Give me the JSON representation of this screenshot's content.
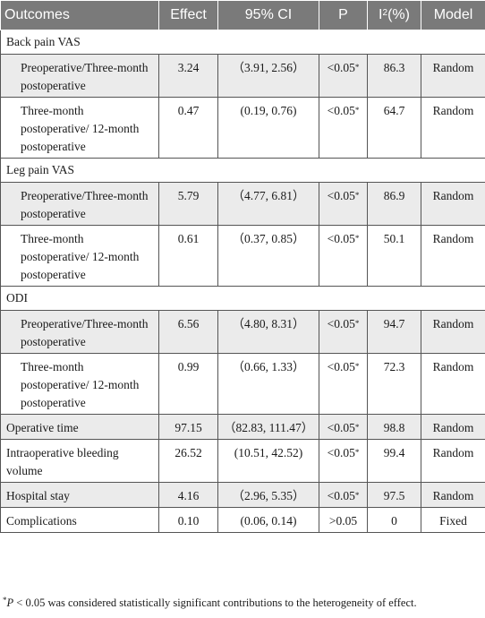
{
  "table": {
    "headers": {
      "outcomes": "Outcomes",
      "effect": "Effect",
      "ci": "95% CI",
      "p": "P",
      "i2_base": "I",
      "i2_sup": "2",
      "i2_unit": "(%)",
      "model": "Model"
    },
    "sections": {
      "back": "Back pain VAS",
      "leg": "Leg pain VAS",
      "odi": "ODI"
    },
    "rows": [
      {
        "outcome": "Preoperative/Three-month postoperative",
        "effect": "3.24",
        "ci": "（3.91, 2.56）",
        "p": "<0.05",
        "p_mark": "*",
        "i2": "86.3",
        "model": "Random"
      },
      {
        "outcome": "Three-month postoperative/ 12-month postoperative",
        "effect": "0.47",
        "ci": "(0.19, 0.76)",
        "p": "<0.05",
        "p_mark": "*",
        "i2": "64.7",
        "model": "Random"
      },
      {
        "outcome": "Preoperative/Three-month postoperative",
        "effect": "5.79",
        "ci": "（4.77, 6.81）",
        "p": "<0.05",
        "p_mark": "*",
        "i2": "86.9",
        "model": "Random"
      },
      {
        "outcome": "Three-month postoperative/ 12-month postoperative",
        "effect": "0.61",
        "ci": "（0.37, 0.85）",
        "p": "<0.05",
        "p_mark": "*",
        "i2": "50.1",
        "model": "Random"
      },
      {
        "outcome": "Preoperative/Three-month postoperative",
        "effect": "6.56",
        "ci": "（4.80, 8.31）",
        "p": "<0.05",
        "p_mark": "*",
        "i2": "94.7",
        "model": "Random"
      },
      {
        "outcome": "Three-month postoperative/ 12-month postoperative",
        "effect": "0.99",
        "ci": "（0.66, 1.33）",
        "p": "<0.05",
        "p_mark": "*",
        "i2": "72.3",
        "model": "Random"
      },
      {
        "outcome": "Operative time",
        "effect": "97.15",
        "ci": "（82.83, 111.47）",
        "p": "<0.05",
        "p_mark": "*",
        "i2": "98.8",
        "model": "Random"
      },
      {
        "outcome": "Intraoperative bleeding volume",
        "effect": "26.52",
        "ci": "(10.51, 42.52)",
        "p": "<0.05",
        "p_mark": "*",
        "i2": "99.4",
        "model": "Random"
      },
      {
        "outcome": "Hospital stay",
        "effect": "4.16",
        "ci": "（2.96, 5.35）",
        "p": "<0.05",
        "p_mark": "*",
        "i2": "97.5",
        "model": "Random"
      },
      {
        "outcome": "Complications",
        "effect": "0.10",
        "ci": "(0.06, 0.14)",
        "p": ">0.05",
        "p_mark": "",
        "i2": "0",
        "model": "Fixed"
      }
    ]
  },
  "footnote": {
    "mark": "*",
    "p_symbol": "P",
    "text": " < 0.05 was considered statistically significant contributions to the heterogeneity of effect."
  }
}
